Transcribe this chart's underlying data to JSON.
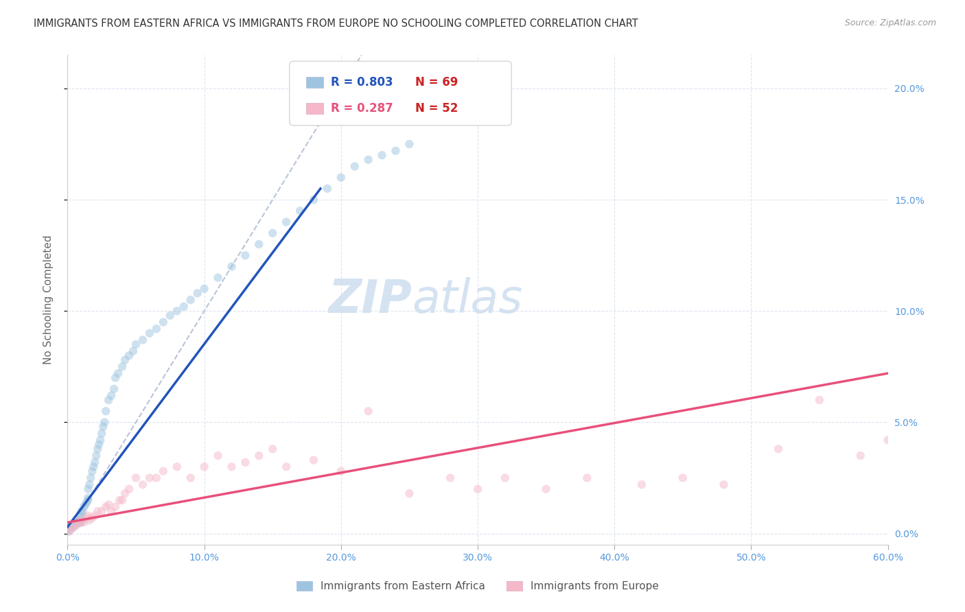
{
  "title": "IMMIGRANTS FROM EASTERN AFRICA VS IMMIGRANTS FROM EUROPE NO SCHOOLING COMPLETED CORRELATION CHART",
  "source": "Source: ZipAtlas.com",
  "ylabel": "No Schooling Completed",
  "legend_blue_r": "R = 0.803",
  "legend_blue_n": "N = 69",
  "legend_pink_r": "R = 0.287",
  "legend_pink_n": "N = 52",
  "legend_label_blue": "Immigrants from Eastern Africa",
  "legend_label_pink": "Immigrants from Europe",
  "xlim": [
    0.0,
    0.6
  ],
  "ylim": [
    -0.005,
    0.215
  ],
  "xticks": [
    0.0,
    0.1,
    0.2,
    0.3,
    0.4,
    0.5,
    0.6
  ],
  "yticks": [
    0.0,
    0.05,
    0.1,
    0.15,
    0.2
  ],
  "ytick_labels_right": [
    "0.0%",
    "5.0%",
    "10.0%",
    "15.0%",
    "20.0%"
  ],
  "xtick_labels": [
    "0.0%",
    "10.0%",
    "20.0%",
    "30.0%",
    "40.0%",
    "50.0%",
    "60.0%"
  ],
  "color_blue": "#9ec4e0",
  "color_pink": "#f5b8c8",
  "line_color_blue": "#2255bb",
  "line_color_pink": "#e8507a",
  "ref_line_color": "#b8c4d8",
  "watermark_color": "#d0dff0",
  "blue_scatter_x": [
    0.001,
    0.002,
    0.003,
    0.004,
    0.005,
    0.006,
    0.007,
    0.008,
    0.009,
    0.01,
    0.01,
    0.01,
    0.01,
    0.01,
    0.011,
    0.012,
    0.013,
    0.014,
    0.015,
    0.015,
    0.015,
    0.016,
    0.017,
    0.018,
    0.019,
    0.02,
    0.021,
    0.022,
    0.023,
    0.024,
    0.025,
    0.026,
    0.027,
    0.028,
    0.03,
    0.032,
    0.034,
    0.035,
    0.037,
    0.04,
    0.042,
    0.045,
    0.048,
    0.05,
    0.055,
    0.06,
    0.065,
    0.07,
    0.075,
    0.08,
    0.085,
    0.09,
    0.095,
    0.1,
    0.11,
    0.12,
    0.13,
    0.14,
    0.15,
    0.16,
    0.17,
    0.18,
    0.19,
    0.2,
    0.21,
    0.22,
    0.23,
    0.24,
    0.25
  ],
  "blue_scatter_y": [
    0.001,
    0.002,
    0.003,
    0.003,
    0.004,
    0.004,
    0.005,
    0.005,
    0.005,
    0.005,
    0.006,
    0.007,
    0.008,
    0.01,
    0.01,
    0.012,
    0.013,
    0.014,
    0.015,
    0.016,
    0.02,
    0.022,
    0.025,
    0.028,
    0.03,
    0.032,
    0.035,
    0.038,
    0.04,
    0.042,
    0.045,
    0.048,
    0.05,
    0.055,
    0.06,
    0.062,
    0.065,
    0.07,
    0.072,
    0.075,
    0.078,
    0.08,
    0.082,
    0.085,
    0.087,
    0.09,
    0.092,
    0.095,
    0.098,
    0.1,
    0.102,
    0.105,
    0.108,
    0.11,
    0.115,
    0.12,
    0.125,
    0.13,
    0.135,
    0.14,
    0.145,
    0.15,
    0.155,
    0.16,
    0.165,
    0.168,
    0.17,
    0.172,
    0.175
  ],
  "pink_scatter_x": [
    0.001,
    0.003,
    0.005,
    0.007,
    0.009,
    0.01,
    0.012,
    0.014,
    0.015,
    0.016,
    0.018,
    0.02,
    0.022,
    0.025,
    0.028,
    0.03,
    0.032,
    0.035,
    0.038,
    0.04,
    0.042,
    0.045,
    0.05,
    0.055,
    0.06,
    0.065,
    0.07,
    0.08,
    0.09,
    0.1,
    0.11,
    0.12,
    0.13,
    0.14,
    0.15,
    0.16,
    0.18,
    0.2,
    0.22,
    0.25,
    0.28,
    0.3,
    0.32,
    0.35,
    0.38,
    0.42,
    0.45,
    0.48,
    0.52,
    0.55,
    0.58,
    0.6
  ],
  "pink_scatter_y": [
    0.001,
    0.002,
    0.003,
    0.004,
    0.005,
    0.006,
    0.005,
    0.007,
    0.008,
    0.006,
    0.007,
    0.008,
    0.01,
    0.01,
    0.012,
    0.013,
    0.01,
    0.012,
    0.015,
    0.015,
    0.018,
    0.02,
    0.025,
    0.022,
    0.025,
    0.025,
    0.028,
    0.03,
    0.025,
    0.03,
    0.035,
    0.03,
    0.032,
    0.035,
    0.038,
    0.03,
    0.033,
    0.028,
    0.055,
    0.018,
    0.025,
    0.02,
    0.025,
    0.02,
    0.025,
    0.022,
    0.025,
    0.022,
    0.038,
    0.06,
    0.035,
    0.042
  ],
  "blue_line_x": [
    0.0,
    0.185
  ],
  "blue_line_y": [
    0.003,
    0.155
  ],
  "pink_line_x": [
    0.0,
    0.6
  ],
  "pink_line_y": [
    0.005,
    0.072
  ],
  "ref_line_x": [
    0.0,
    0.215
  ],
  "ref_line_y": [
    0.0,
    0.215
  ],
  "background_color": "#ffffff",
  "grid_color": "#dde5f0",
  "axis_color": "#5599dd",
  "title_fontsize": 10.5,
  "label_fontsize": 11,
  "tick_fontsize": 10,
  "scatter_size": 80,
  "scatter_alpha": 0.5
}
